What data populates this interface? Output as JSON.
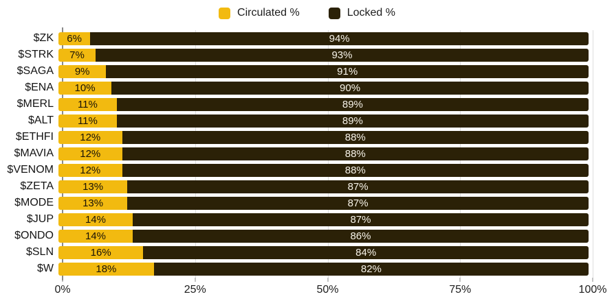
{
  "legend": {
    "items": [
      {
        "label": "Circulated %",
        "color": "#F2BA10"
      },
      {
        "label": "Locked %",
        "color": "#2B2107"
      }
    ]
  },
  "chart_data": {
    "type": "bar",
    "orientation": "horizontal",
    "stacked": true,
    "title": "",
    "xlabel": "",
    "ylabel": "",
    "categories": [
      "$ZK",
      "$STRK",
      "$SAGA",
      "$ENA",
      "$MERL",
      "$ALT",
      "$ETHFI",
      "$MAVIA",
      "$VENOM",
      "$ZETA",
      "$MODE",
      "$JUP",
      "$ONDO",
      "$SLN",
      "$W"
    ],
    "series": [
      {
        "name": "Circulated %",
        "color": "#F2BA10",
        "values": [
          6,
          7,
          9,
          10,
          11,
          11,
          12,
          12,
          12,
          13,
          13,
          14,
          14,
          16,
          18
        ],
        "labels": [
          "6%",
          "7%",
          "9%",
          "10%",
          "11%",
          "11%",
          "12%",
          "12%",
          "12%",
          "13%",
          "13%",
          "14%",
          "14%",
          "16%",
          "18%"
        ]
      },
      {
        "name": "Locked %",
        "color": "#2B2107",
        "values": [
          94,
          93,
          91,
          90,
          89,
          89,
          88,
          88,
          88,
          87,
          87,
          87,
          86,
          84,
          82
        ],
        "labels": [
          "94%",
          "93%",
          "91%",
          "90%",
          "89%",
          "89%",
          "88%",
          "88%",
          "88%",
          "87%",
          "87%",
          "87%",
          "86%",
          "84%",
          "82%"
        ]
      }
    ],
    "xlim": [
      0,
      100
    ],
    "x_ticks": [
      {
        "label": "0%",
        "value": 0
      },
      {
        "label": "25%",
        "value": 25
      },
      {
        "label": "50%",
        "value": 50
      },
      {
        "label": "75%",
        "value": 75
      },
      {
        "label": "100%",
        "value": 100
      }
    ],
    "grid": "vertical",
    "legend_position": "top-center"
  },
  "colors": {
    "circulated": "#F2BA10",
    "locked": "#2B2107",
    "gridline": "#DEDEDE",
    "axis_line": "#8A8A8A",
    "label_on_yellow": "#191307",
    "label_on_dark": "#F7F3E9",
    "background": "#FFFFFF"
  }
}
